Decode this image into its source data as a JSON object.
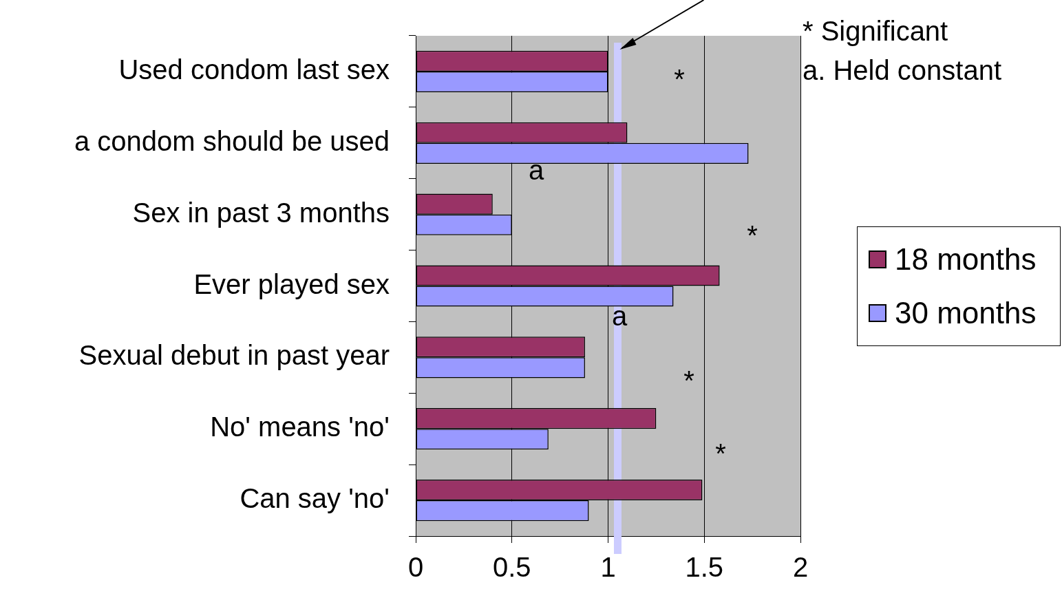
{
  "chart_data": {
    "type": "bar",
    "orientation": "horizontal",
    "categories": [
      "Used condom last sex",
      "a condom should be used",
      "Sex in past 3 months",
      "Ever played sex",
      "Sexual debut in past year",
      "No' means 'no'",
      "Can say 'no'"
    ],
    "series": [
      {
        "name": "18 months",
        "color": "#993366",
        "values": [
          1.0,
          1.1,
          0.4,
          1.58,
          0.88,
          1.25,
          1.49
        ]
      },
      {
        "name": "30 months",
        "color": "#9999ff",
        "values": [
          1.0,
          1.73,
          0.5,
          1.34,
          0.88,
          0.69,
          0.9
        ]
      }
    ],
    "xlim": [
      0,
      2
    ],
    "xticks": [
      0,
      0.5,
      1,
      1.5,
      2
    ],
    "grid": "x",
    "legend": "right",
    "ref_lines": [
      {
        "axis": "x",
        "value": 1.05,
        "color": "#ccccff"
      }
    ],
    "annotations": [
      "* Significant",
      "a. Held constant",
      "*",
      "a",
      "*",
      "a",
      "*",
      "*"
    ]
  }
}
